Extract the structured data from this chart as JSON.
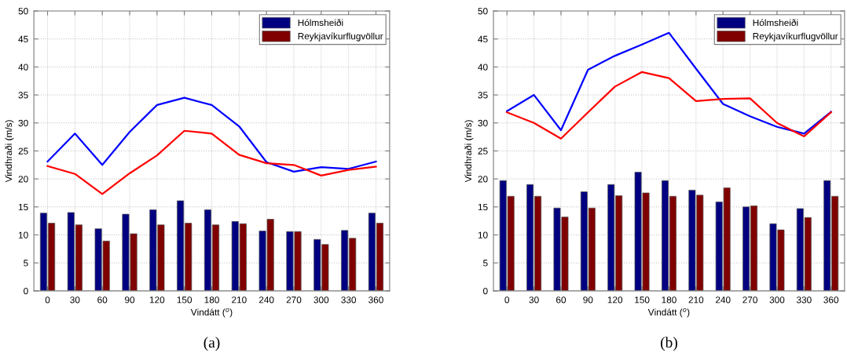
{
  "chart_data": [
    {
      "type": "bar",
      "categories": [
        "0",
        "30",
        "60",
        "90",
        "120",
        "150",
        "180",
        "210",
        "240",
        "270",
        "300",
        "330",
        "360"
      ],
      "xlabel": "Vindátt ($^{o}$)",
      "ylabel": "Vindhraði (m/s)",
      "ylim": [
        0,
        50
      ],
      "yticks": [
        0,
        5,
        10,
        15,
        20,
        25,
        30,
        35,
        40,
        45,
        50
      ],
      "grid": true,
      "legend": "top right",
      "annotations": [
        "(a)"
      ],
      "series": [
        {
          "name": "Hólmsheiði",
          "color": "#000080",
          "values": [
            13.9,
            14.0,
            11.1,
            13.7,
            14.5,
            16.1,
            14.5,
            12.4,
            10.7,
            10.6,
            9.2,
            10.8,
            13.9
          ]
        },
        {
          "name": "Reykjavíkurflugvöllur",
          "color": "#800000",
          "values": [
            12.1,
            11.8,
            8.9,
            10.2,
            11.8,
            12.1,
            11.8,
            12.0,
            12.8,
            10.6,
            8.3,
            9.4,
            12.1
          ]
        },
        {
          "type": "line",
          "color": "#0000ff",
          "values": [
            23.1,
            28.1,
            22.5,
            28.4,
            33.2,
            34.5,
            33.2,
            29.4,
            23.0,
            21.3,
            22.1,
            21.8,
            23.1
          ]
        },
        {
          "type": "line",
          "color": "#ff0000",
          "values": [
            22.3,
            20.9,
            17.3,
            21.0,
            24.2,
            28.6,
            28.1,
            24.3,
            22.8,
            22.5,
            20.6,
            21.6,
            22.2
          ]
        }
      ]
    },
    {
      "type": "bar",
      "categories": [
        "0",
        "30",
        "60",
        "90",
        "120",
        "150",
        "180",
        "210",
        "240",
        "270",
        "300",
        "330",
        "360"
      ],
      "xlabel": "Vindátt ($^{o}$)",
      "ylabel": "Vindhraði (m/s)",
      "ylim": [
        0,
        50
      ],
      "yticks": [
        0,
        5,
        10,
        15,
        20,
        25,
        30,
        35,
        40,
        45,
        50
      ],
      "grid": true,
      "legend": "top right",
      "annotations": [
        "(b)"
      ],
      "series": [
        {
          "name": "Hólmsheiði",
          "color": "#000080",
          "values": [
            19.7,
            19.0,
            14.8,
            17.7,
            19.0,
            21.2,
            19.7,
            18.0,
            15.9,
            15.0,
            12.0,
            14.7,
            19.7
          ]
        },
        {
          "name": "Reykjavíkurflugvöllur",
          "color": "#800000",
          "values": [
            16.9,
            16.9,
            13.2,
            14.8,
            17.0,
            17.5,
            16.9,
            17.1,
            18.4,
            15.2,
            10.9,
            13.1,
            16.9
          ]
        },
        {
          "type": "line",
          "color": "#0000ff",
          "values": [
            32.1,
            35.0,
            28.7,
            39.5,
            42.0,
            44.0,
            46.1,
            39.7,
            33.4,
            31.2,
            29.3,
            28.1,
            32.0
          ]
        },
        {
          "type": "line",
          "color": "#ff0000",
          "values": [
            31.9,
            30.0,
            27.2,
            31.9,
            36.5,
            39.1,
            38.0,
            33.9,
            34.3,
            34.4,
            30.0,
            27.6,
            31.9
          ]
        }
      ]
    }
  ]
}
